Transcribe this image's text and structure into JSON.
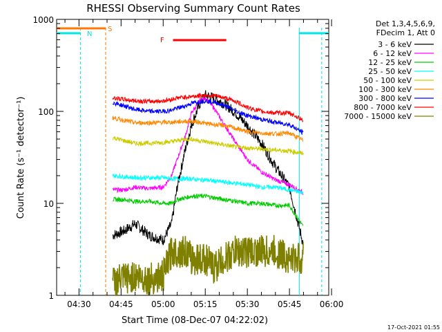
{
  "chart_data": {
    "type": "line",
    "title": "RHESSI Observing Summary Count Rates",
    "xlabel": "Start Time (08-Dec-07 04:22:02)",
    "ylabel": "Count Rate (s⁻¹ detector⁻¹)",
    "y_scale": "log",
    "ylim": [
      1,
      1000
    ],
    "xlim": [
      "04:22",
      "05:59"
    ],
    "x_ticks": [
      "04:30",
      "04:45",
      "05:00",
      "05:15",
      "05:30",
      "05:45",
      "06:00"
    ],
    "y_ticks": [
      "1",
      "10",
      "100",
      "1000"
    ],
    "grid": false,
    "legend_position": "right",
    "legend_header": [
      "Det 1,3,4,5,6,9,",
      "FDecim 1, Att 0"
    ],
    "footer_date": "17-Oct-2021 01:55",
    "markers": {
      "S": "S",
      "N": "N",
      "F": "F"
    },
    "series": [
      {
        "name": "3 - 6 keV",
        "color": "#000000",
        "x": [
          "04:42",
          "04:46",
          "04:50",
          "04:55",
          "05:00",
          "05:03",
          "05:05",
          "05:08",
          "05:10",
          "05:13",
          "05:15",
          "05:18",
          "05:22",
          "05:26",
          "05:30",
          "05:35",
          "05:40",
          "05:45",
          "05:50"
        ],
        "y": [
          4.5,
          5,
          6,
          4.5,
          4,
          6,
          15,
          40,
          70,
          120,
          150,
          140,
          120,
          95,
          70,
          45,
          25,
          15,
          3.5
        ]
      },
      {
        "name": "6 - 12 keV",
        "color": "#ff00ff",
        "x": [
          "04:42",
          "04:46",
          "04:50",
          "04:55",
          "05:00",
          "05:03",
          "05:05",
          "05:08",
          "05:10",
          "05:13",
          "05:15",
          "05:18",
          "05:22",
          "05:26",
          "05:30",
          "05:35",
          "05:40",
          "05:45",
          "05:50"
        ],
        "y": [
          14,
          14,
          15,
          14.5,
          15,
          20,
          30,
          55,
          95,
          130,
          140,
          110,
          70,
          45,
          30,
          22,
          18,
          16,
          13
        ]
      },
      {
        "name": "12 - 25 keV",
        "color": "#00cc00",
        "x": [
          "04:42",
          "04:46",
          "04:50",
          "04:55",
          "05:00",
          "05:03",
          "05:05",
          "05:08",
          "05:10",
          "05:13",
          "05:15",
          "05:18",
          "05:22",
          "05:26",
          "05:30",
          "05:35",
          "05:40",
          "05:45",
          "05:50"
        ],
        "y": [
          11,
          11,
          10.5,
          10.5,
          10,
          10,
          11,
          11.5,
          12,
          12,
          12,
          11.5,
          11,
          10.5,
          10,
          10,
          9.5,
          9.5,
          5.5
        ]
      },
      {
        "name": "25 - 50 keV",
        "color": "#00ffff",
        "x": [
          "04:42",
          "04:46",
          "04:50",
          "04:55",
          "05:00",
          "05:03",
          "05:05",
          "05:08",
          "05:10",
          "05:13",
          "05:15",
          "05:18",
          "05:22",
          "05:26",
          "05:30",
          "05:35",
          "05:40",
          "05:45",
          "05:50"
        ],
        "y": [
          20,
          19.5,
          19,
          19,
          19,
          18.5,
          18.5,
          18.5,
          18.5,
          18,
          18,
          17.5,
          17,
          16.5,
          16,
          15,
          15,
          14,
          13
        ]
      },
      {
        "name": "50 - 100 keV",
        "color": "#cccc00",
        "x": [
          "04:42",
          "04:46",
          "04:50",
          "04:55",
          "05:00",
          "05:03",
          "05:05",
          "05:08",
          "05:10",
          "05:13",
          "05:15",
          "05:18",
          "05:22",
          "05:26",
          "05:30",
          "05:35",
          "05:40",
          "05:45",
          "05:50"
        ],
        "y": [
          52,
          48,
          45,
          45,
          46,
          47,
          48,
          50,
          50,
          48,
          47,
          45,
          43,
          41,
          40,
          39,
          38,
          37,
          35
        ]
      },
      {
        "name": "100 - 300 keV",
        "color": "#ff8800",
        "x": [
          "04:42",
          "04:46",
          "04:50",
          "04:55",
          "05:00",
          "05:03",
          "05:05",
          "05:08",
          "05:10",
          "05:13",
          "05:15",
          "05:18",
          "05:22",
          "05:26",
          "05:30",
          "05:35",
          "05:40",
          "05:45",
          "05:50"
        ],
        "y": [
          85,
          80,
          75,
          75,
          76,
          76,
          77,
          78,
          78,
          76,
          74,
          72,
          70,
          65,
          60,
          58,
          57,
          58,
          48
        ]
      },
      {
        "name": "300 - 800 keV",
        "color": "#0000ff",
        "x": [
          "04:42",
          "04:46",
          "04:50",
          "04:55",
          "05:00",
          "05:03",
          "05:05",
          "05:08",
          "05:10",
          "05:13",
          "05:15",
          "05:18",
          "05:22",
          "05:26",
          "05:30",
          "05:35",
          "05:40",
          "05:45",
          "05:50"
        ],
        "y": [
          125,
          115,
          105,
          100,
          100,
          103,
          108,
          115,
          122,
          128,
          130,
          126,
          115,
          100,
          90,
          82,
          76,
          72,
          58
        ]
      },
      {
        "name": "800 - 7000 keV",
        "color": "#ff0000",
        "x": [
          "04:42",
          "04:46",
          "04:50",
          "04:55",
          "05:00",
          "05:03",
          "05:05",
          "05:08",
          "05:10",
          "05:13",
          "05:15",
          "05:18",
          "05:22",
          "05:26",
          "05:30",
          "05:35",
          "05:40",
          "05:45",
          "05:50"
        ],
        "y": [
          140,
          135,
          130,
          128,
          130,
          135,
          140,
          143,
          145,
          148,
          150,
          148,
          140,
          128,
          110,
          100,
          96,
          96,
          80
        ]
      },
      {
        "name": "7000 - 15000 keV",
        "color": "#808000",
        "x": [
          "04:42",
          "04:46",
          "04:50",
          "04:55",
          "05:00",
          "05:03",
          "05:05",
          "05:08",
          "05:10",
          "05:13",
          "05:15",
          "05:18",
          "05:22",
          "05:26",
          "05:30",
          "05:35",
          "05:40",
          "05:45",
          "05:50"
        ],
        "y": [
          1.4,
          1.5,
          1.6,
          1.5,
          1.6,
          3,
          3,
          3,
          2.5,
          2.5,
          2.5,
          2,
          2.5,
          3,
          3,
          3,
          3,
          2.5,
          2.5
        ]
      }
    ]
  }
}
